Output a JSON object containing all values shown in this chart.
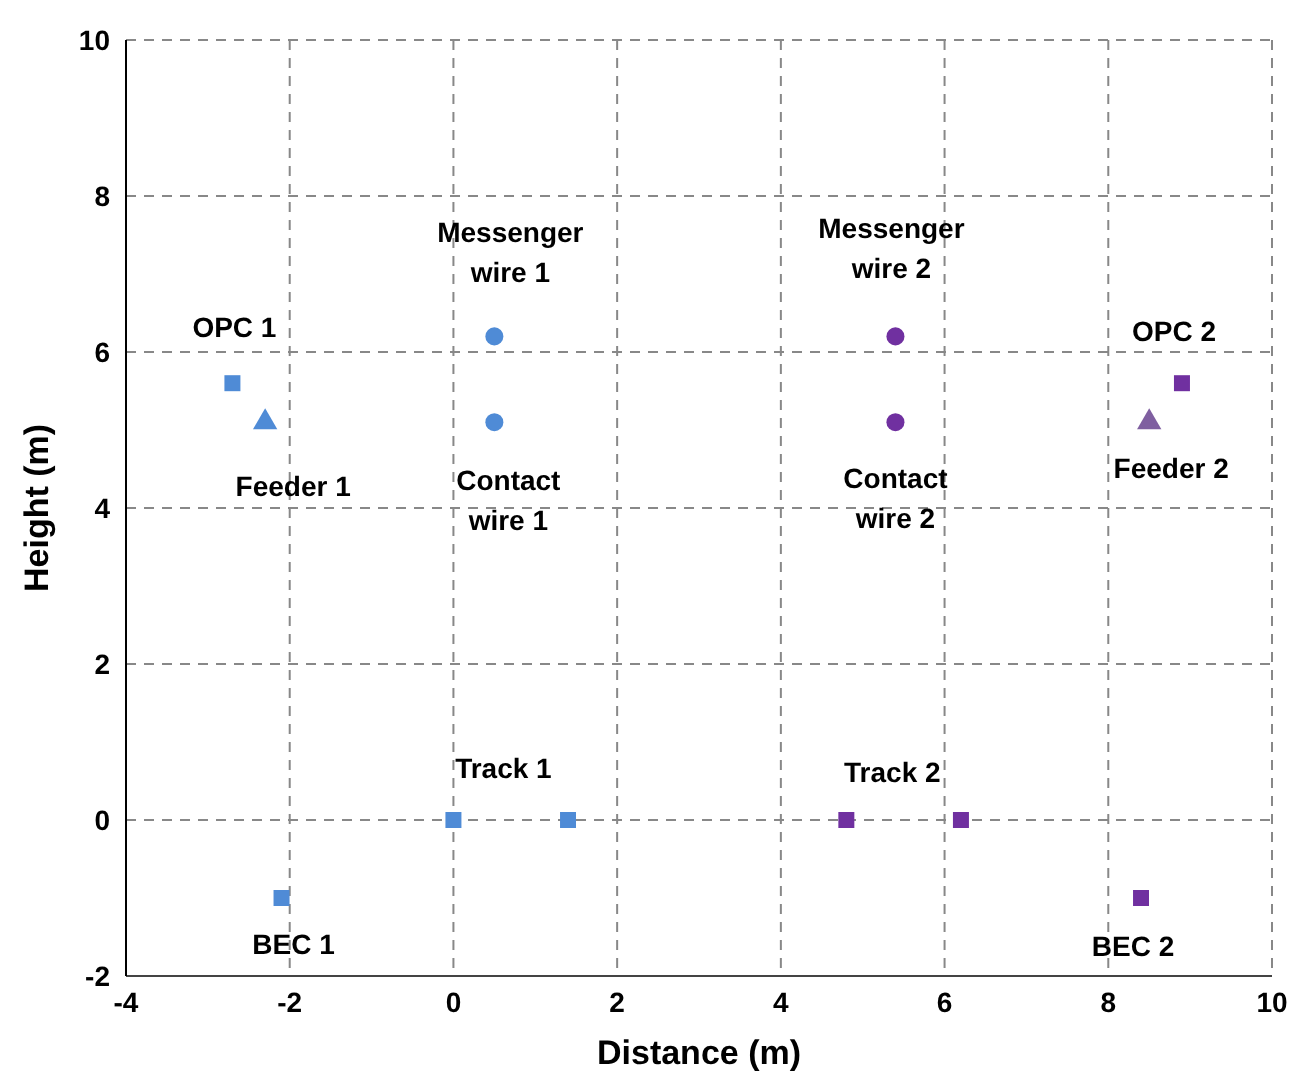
{
  "chart_data": {
    "type": "scatter",
    "xlabel": "Distance (m)",
    "ylabel": "Height (m)",
    "xlim": [
      -4,
      10
    ],
    "xticks": [
      -4,
      -2,
      0,
      2,
      4,
      6,
      8,
      10
    ],
    "ylim": [
      -2,
      10
    ],
    "yticks": [
      -2,
      0,
      2,
      4,
      6,
      8,
      10
    ],
    "grid": true,
    "series": [
      {
        "color": "#4f8bd6",
        "marker": "square",
        "x": [
          -2.7,
          0,
          1.4,
          -2.1
        ],
        "values": [
          5.6,
          0,
          0,
          -1
        ]
      },
      {
        "color": "#4f8bd6",
        "marker": "circle",
        "x": [
          0.5,
          0.5
        ],
        "values": [
          6.2,
          5.1
        ]
      },
      {
        "color": "#4f8bd6",
        "marker": "triangle",
        "x": [
          -2.3
        ],
        "values": [
          5.1
        ]
      },
      {
        "color": "#7030a0",
        "marker": "square",
        "x": [
          8.9,
          4.8,
          6.2,
          8.4
        ],
        "values": [
          5.6,
          0,
          0,
          -1
        ]
      },
      {
        "color": "#7030a0",
        "marker": "circle",
        "x": [
          5.4,
          5.4
        ],
        "values": [
          6.2,
          5.1
        ]
      },
      {
        "color": "#7f5fa0",
        "marker": "triangle",
        "x": [
          8.5
        ],
        "values": [
          5.1
        ]
      }
    ],
    "annotations": [
      {
        "text": "OPC 1",
        "x": -2.7,
        "y": 5.6
      },
      {
        "text": "Feeder 1",
        "x": -2.3,
        "y": 5.1
      },
      {
        "text": "Messenger\nwire 1",
        "x": 0.5,
        "y": 6.2
      },
      {
        "text": "Contact\nwire 1",
        "x": 0.5,
        "y": 5.1
      },
      {
        "text": "Messenger\nwire 2",
        "x": 5.4,
        "y": 6.2
      },
      {
        "text": "Contact\nwire 2",
        "x": 5.4,
        "y": 5.1
      },
      {
        "text": "OPC 2",
        "x": 8.9,
        "y": 5.6
      },
      {
        "text": "Feeder 2",
        "x": 8.5,
        "y": 5.1
      },
      {
        "text": "Track 1",
        "x": 0,
        "y": 0
      },
      {
        "text": "Track 2",
        "x": 4.8,
        "y": 0
      },
      {
        "text": "BEC 1",
        "x": -2.1,
        "y": -1
      },
      {
        "text": "BEC 2",
        "x": 8.4,
        "y": -1
      }
    ]
  }
}
